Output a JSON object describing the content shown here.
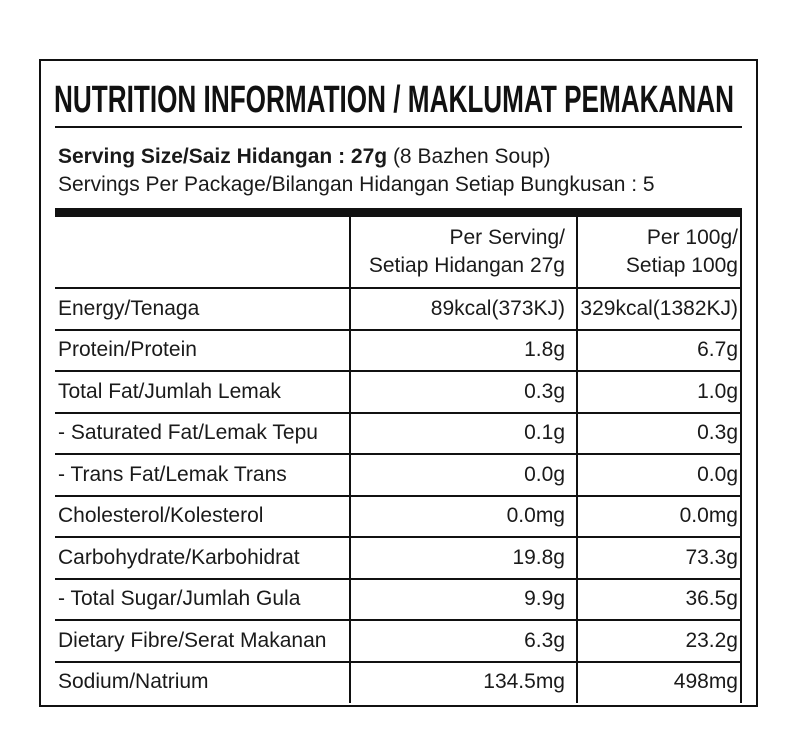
{
  "header": {
    "title": "NUTRITION INFORMATION / MAKLUMAT PEMAKANAN"
  },
  "serving": {
    "size": "Serving Size/Saiz Hidangan : 27g",
    "size_note": "(8 Bazhen Soup)",
    "per_package": "Servings Per Package/Bilangan Hidangan Setiap Bungkusan : 5"
  },
  "table": {
    "columns": [
      [
        "Per Serving/",
        "Setiap Hidangan 27g"
      ],
      [
        "Per 100g/",
        "Setiap 100g"
      ]
    ],
    "rows": [
      [
        "Energy/Tenaga",
        "89kcal(373KJ)",
        "329kcal(1382KJ)"
      ],
      [
        "Protein/Protein",
        "1.8g",
        "6.7g"
      ],
      [
        "Total Fat/Jumlah Lemak",
        "0.3g",
        "1.0g"
      ],
      [
        "- Saturated Fat/Lemak Tepu",
        "0.1g",
        "0.3g"
      ],
      [
        "- Trans Fat/Lemak Trans",
        "0.0g",
        "0.0g"
      ],
      [
        "Cholesterol/Kolesterol",
        "0.0mg",
        "0.0mg"
      ],
      [
        "Carbohydrate/Karbohidrat",
        "19.8g",
        "73.3g"
      ],
      [
        "- Total Sugar/Jumlah Gula",
        "9.9g",
        "36.5g"
      ],
      [
        "Dietary Fibre/Serat Makanan",
        "6.3g",
        "23.2g"
      ],
      [
        "Sodium/Natrium",
        "134.5mg",
        "498mg"
      ]
    ]
  }
}
